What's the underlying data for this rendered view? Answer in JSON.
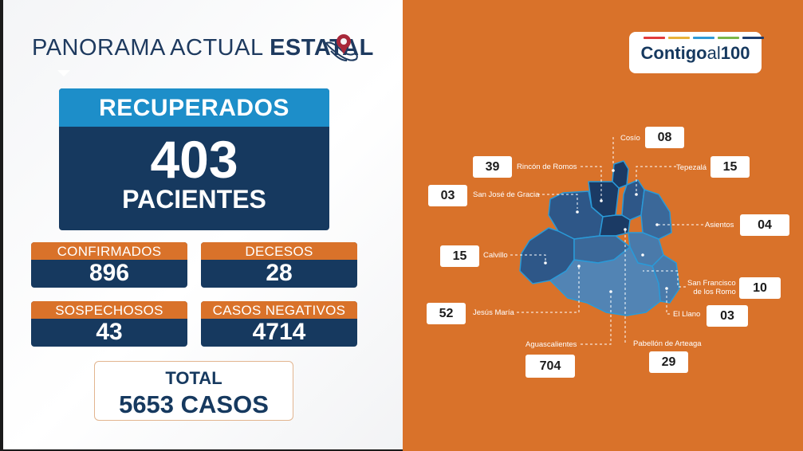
{
  "header": {
    "title_light": "PANORAMA ACTUAL ",
    "title_bold": "ESTATAL"
  },
  "recuperados": {
    "label": "RECUPERADOS",
    "value": "403",
    "unit": "PACIENTES"
  },
  "stats": {
    "confirmados": {
      "label": "CONFIRMADOS",
      "value": "896"
    },
    "decesos": {
      "label": "DECESOS",
      "value": "28"
    },
    "sospechosos": {
      "label": "SOSPECHOSOS",
      "value": "43"
    },
    "negativos": {
      "label": "CASOS NEGATIVOS",
      "value": "4714"
    }
  },
  "total": {
    "label": "TOTAL",
    "value": "5653 CASOS"
  },
  "logo": {
    "text_bold": "Contigo",
    "text_light": "al",
    "text_num": "100",
    "bar_colors": [
      "#e23b3b",
      "#e8b23a",
      "#2f9ad6",
      "#7ab648",
      "#1d3d6e"
    ]
  },
  "colors": {
    "orange": "#d9722a",
    "navy": "#16395f",
    "sky": "#1d8ec9"
  },
  "municipios": {
    "cosio": {
      "name": "Cosío",
      "value": "08"
    },
    "rincon": {
      "name": "Rincón de Romos",
      "value": "39"
    },
    "tepezala": {
      "name": "Tepezalá",
      "value": "15"
    },
    "sanjose": {
      "name": "San José de Gracia",
      "value": "03"
    },
    "asientos": {
      "name": "Asientos",
      "value": "04"
    },
    "calvillo": {
      "name": "Calvillo",
      "value": "15"
    },
    "sanfrancisco": {
      "name_l1": "San Francisco",
      "name_l2": "de los Romo",
      "value": "10"
    },
    "jesusmaria": {
      "name": "Jesús María",
      "value": "52"
    },
    "elllano": {
      "name": "El Llano",
      "value": "03"
    },
    "aguascalientes": {
      "name": "Aguascalientes",
      "value": "704"
    },
    "pabellon": {
      "name": "Pabellón de Arteaga",
      "value": "29"
    }
  }
}
